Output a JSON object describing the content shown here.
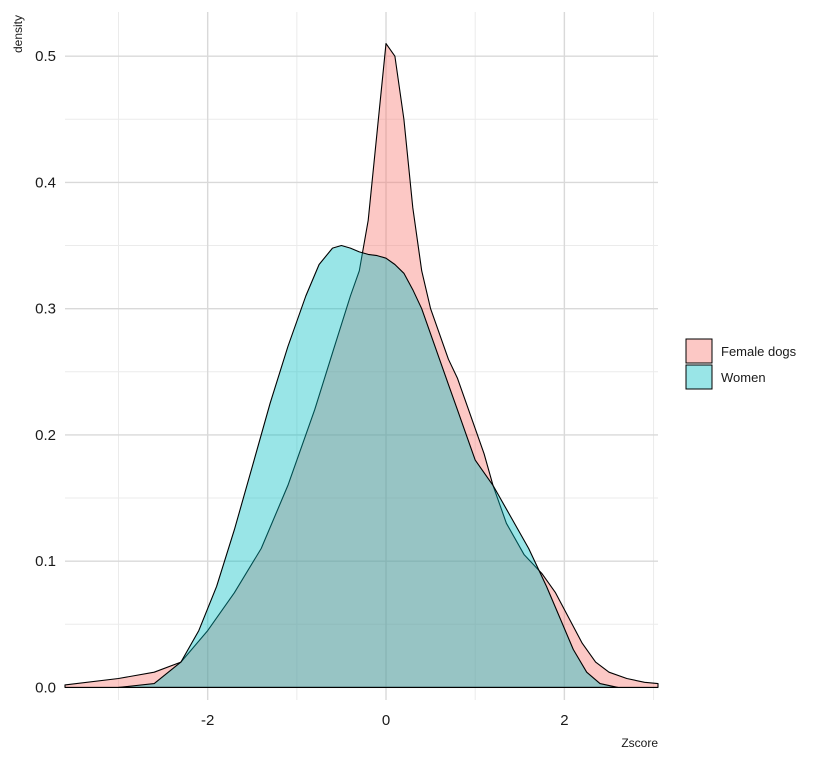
{
  "chart_data": {
    "type": "area",
    "subtype": "density",
    "xlabel": "Zscore",
    "ylabel": "density",
    "xlim": [
      -3.6,
      3.05
    ],
    "ylim": [
      -0.01,
      0.535
    ],
    "x_ticks": [
      -2,
      0,
      2
    ],
    "x_tick_labels": [
      "-2",
      "0",
      "2"
    ],
    "x_minor_ticks": [
      -3,
      -1,
      1,
      3
    ],
    "y_ticks": [
      0.0,
      0.1,
      0.2,
      0.3,
      0.4,
      0.5
    ],
    "y_tick_labels": [
      "0.0",
      "0.1",
      "0.2",
      "0.3",
      "0.4",
      "0.5"
    ],
    "y_minor_ticks": [
      0.05,
      0.15,
      0.25,
      0.35,
      0.45
    ],
    "grid": true,
    "legend_position": "right",
    "series": [
      {
        "name": "Female dogs",
        "color": "#F8766D",
        "x": [
          -3.6,
          -3.0,
          -2.6,
          -2.3,
          -2.0,
          -1.7,
          -1.4,
          -1.1,
          -0.8,
          -0.6,
          -0.4,
          -0.3,
          -0.2,
          -0.1,
          0.0,
          0.1,
          0.2,
          0.3,
          0.4,
          0.5,
          0.6,
          0.7,
          0.8,
          0.9,
          1.0,
          1.1,
          1.2,
          1.35,
          1.55,
          1.75,
          1.9,
          2.05,
          2.2,
          2.35,
          2.5,
          2.7,
          2.9,
          3.05
        ],
        "y": [
          0.002,
          0.007,
          0.012,
          0.02,
          0.045,
          0.075,
          0.11,
          0.16,
          0.22,
          0.265,
          0.31,
          0.33,
          0.37,
          0.44,
          0.51,
          0.5,
          0.45,
          0.38,
          0.33,
          0.3,
          0.28,
          0.26,
          0.245,
          0.225,
          0.205,
          0.185,
          0.16,
          0.13,
          0.105,
          0.09,
          0.075,
          0.055,
          0.035,
          0.02,
          0.012,
          0.007,
          0.004,
          0.003
        ]
      },
      {
        "name": "Women",
        "color": "#00BFC4",
        "x": [
          -3.0,
          -2.6,
          -2.3,
          -2.1,
          -1.9,
          -1.7,
          -1.5,
          -1.3,
          -1.1,
          -0.9,
          -0.75,
          -0.6,
          -0.5,
          -0.4,
          -0.3,
          -0.2,
          -0.1,
          0.0,
          0.1,
          0.2,
          0.3,
          0.4,
          0.5,
          0.6,
          0.7,
          0.8,
          0.9,
          1.0,
          1.2,
          1.4,
          1.6,
          1.8,
          1.95,
          2.1,
          2.25,
          2.4,
          2.6
        ],
        "y": [
          0.0,
          0.003,
          0.02,
          0.045,
          0.08,
          0.125,
          0.175,
          0.225,
          0.27,
          0.31,
          0.335,
          0.348,
          0.35,
          0.348,
          0.345,
          0.343,
          0.342,
          0.34,
          0.335,
          0.328,
          0.315,
          0.3,
          0.28,
          0.26,
          0.24,
          0.22,
          0.2,
          0.18,
          0.16,
          0.135,
          0.11,
          0.08,
          0.055,
          0.03,
          0.012,
          0.003,
          0.0
        ]
      }
    ]
  }
}
